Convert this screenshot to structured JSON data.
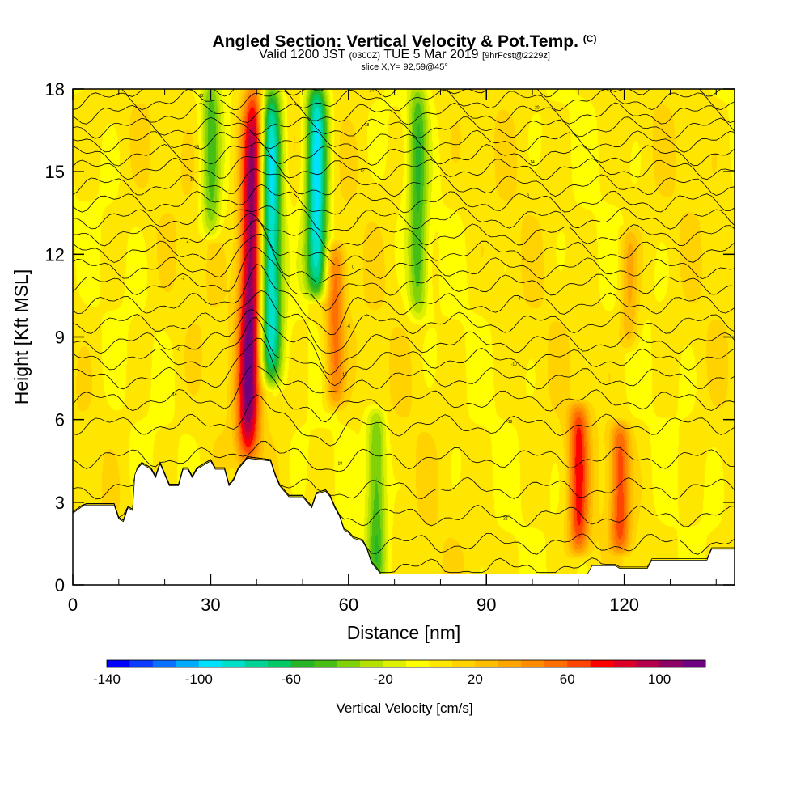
{
  "header": {
    "title": "Angled Section: Vertical Velocity & Pot.Temp.",
    "title_mark": "(C)",
    "valid_prefix": "Valid 1200 JST",
    "valid_utc": "(0300Z)",
    "valid_date": "TUE 5 Mar 2019",
    "valid_fcst": "[9hrFcst@2229z]",
    "slice": "slice X,Y= 92,59@45°"
  },
  "chart_data": {
    "type": "heatmap",
    "title": "Angled Section: Vertical Velocity & Pot.Temp.",
    "xlabel": "Distance [nm]",
    "ylabel": "Height [Kft MSL]",
    "xlim": [
      0,
      144
    ],
    "ylim": [
      0,
      18
    ],
    "x_ticks": [
      0,
      30,
      60,
      90,
      120
    ],
    "x_tick_labels": [
      "0",
      "30",
      "60",
      "90",
      "120"
    ],
    "y_ticks": [
      0,
      3,
      6,
      9,
      12,
      15,
      18
    ],
    "y_tick_labels": [
      "0",
      "3",
      "6",
      "9",
      "12",
      "15",
      "18"
    ],
    "grid": false,
    "colorbar": {
      "label": "Vertical Velocity [cm/s]",
      "min": -140,
      "max": 120,
      "step": 10,
      "tick_values": [
        -140,
        -100,
        -60,
        -20,
        20,
        60,
        100
      ],
      "tick_labels": [
        "-140",
        "-100",
        "-60",
        "-20",
        "20",
        "60",
        "100"
      ],
      "colors": [
        "#0000ff",
        "#0a3cff",
        "#0a70ff",
        "#00aaff",
        "#00e0ff",
        "#00e0c8",
        "#00d296",
        "#00c864",
        "#28b428",
        "#46be14",
        "#82d20a",
        "#b4e100",
        "#dcf000",
        "#ffff00",
        "#ffe600",
        "#ffd200",
        "#ffbe00",
        "#ffa500",
        "#ff8c00",
        "#ff6e00",
        "#ff4600",
        "#ff0000",
        "#dc0028",
        "#b4004b",
        "#8c0064",
        "#6e0082"
      ]
    },
    "features": [
      {
        "kind": "updraft",
        "x": 38.5,
        "y_top": 18,
        "y_bottom": 4.6,
        "w_max": 110
      },
      {
        "kind": "downdraft",
        "x": 43,
        "y_top": 18,
        "y_bottom": 7.6,
        "w_min": -95
      },
      {
        "kind": "downdraft",
        "x": 53,
        "y_top": 18,
        "y_bottom": 10.8,
        "w_min": -100
      },
      {
        "kind": "updraft",
        "x": 57,
        "y_top": 12,
        "y_bottom": 6.8,
        "w_max": 50
      },
      {
        "kind": "downdraft",
        "x": 75,
        "y_top": 18,
        "y_bottom": 10,
        "w_min": -50
      },
      {
        "kind": "downdraft",
        "x": 66,
        "y_top": 6,
        "y_bottom": 0.4,
        "w_min": -50
      },
      {
        "kind": "updraft",
        "x": 110,
        "y_top": 6.2,
        "y_bottom": 1.5,
        "w_max": 65
      },
      {
        "kind": "updraft",
        "x": 119,
        "y_top": 5.5,
        "y_bottom": 1.6,
        "w_max": 60
      },
      {
        "kind": "downdraft",
        "x": 30,
        "y_top": 18,
        "y_bottom": 13,
        "w_min": -45
      },
      {
        "kind": "updraft",
        "x": 121,
        "y_top": 12.5,
        "y_bottom": 9,
        "w_max": 30
      }
    ],
    "terrain": [
      [
        0,
        2.6
      ],
      [
        2.5,
        2.9
      ],
      [
        9,
        2.9
      ],
      [
        10,
        2.4
      ],
      [
        11,
        2.3
      ],
      [
        12,
        2.8
      ],
      [
        13,
        2.7
      ],
      [
        13.5,
        4
      ],
      [
        14,
        4.2
      ],
      [
        15,
        4.4
      ],
      [
        17,
        4.2
      ],
      [
        18,
        3.9
      ],
      [
        19,
        4.4
      ],
      [
        20,
        4
      ],
      [
        21,
        3.6
      ],
      [
        23,
        3.6
      ],
      [
        24,
        4.2
      ],
      [
        25,
        4.2
      ],
      [
        26,
        3.9
      ],
      [
        27,
        4.2
      ],
      [
        30,
        4.5
      ],
      [
        31,
        4.2
      ],
      [
        33,
        4.2
      ],
      [
        34,
        3.6
      ],
      [
        35,
        3.8
      ],
      [
        36,
        4.2
      ],
      [
        37,
        4.4
      ],
      [
        38,
        4.6
      ],
      [
        43,
        4.5
      ],
      [
        44,
        4
      ],
      [
        45,
        3.6
      ],
      [
        46,
        3.4
      ],
      [
        47,
        3.2
      ],
      [
        50,
        3.2
      ],
      [
        51,
        3
      ],
      [
        52,
        2.8
      ],
      [
        53,
        3.3
      ],
      [
        55,
        3.4
      ],
      [
        56,
        3.2
      ],
      [
        57,
        2.8
      ],
      [
        58,
        2.5
      ],
      [
        59,
        2
      ],
      [
        60,
        1.9
      ],
      [
        61,
        1.7
      ],
      [
        63,
        1.6
      ],
      [
        64,
        1.3
      ],
      [
        65,
        0.8
      ],
      [
        66,
        0.6
      ],
      [
        67,
        0.4
      ],
      [
        112,
        0.4
      ],
      [
        113,
        0.7
      ],
      [
        118,
        0.7
      ],
      [
        119,
        0.6
      ],
      [
        125,
        0.6
      ],
      [
        126,
        0.9
      ],
      [
        138,
        0.9
      ],
      [
        139,
        1.3
      ],
      [
        144,
        1.3
      ]
    ],
    "isentropes_C": [
      -25,
      -24,
      -22,
      -20,
      -18,
      -16,
      -14,
      -12,
      -10,
      -8,
      -6,
      -4,
      -2,
      0,
      2,
      4,
      6,
      8,
      10,
      12,
      14,
      16,
      18,
      20,
      22,
      24,
      26
    ],
    "isentrope_heights": [
      0.6,
      1.5,
      2.5,
      3.5,
      4.6,
      5.8,
      6.7,
      7.5,
      8.2,
      8.8,
      9.5,
      10.2,
      10.9,
      11.5,
      12.1,
      12.7,
      13.3,
      13.9,
      14.5,
      15.1,
      15.6,
      16.1,
      16.6,
      17.1,
      17.6,
      18.1,
      18.6
    ]
  }
}
